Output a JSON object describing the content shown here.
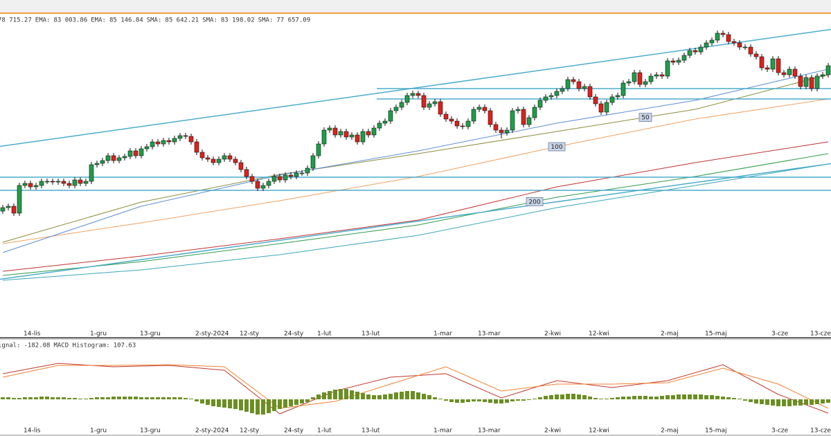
{
  "chart_data": [
    {
      "type": "candlestick",
      "ylim": [
        53200,
        88000
      ],
      "up_color": "#1e9e4a",
      "down_color": "#e0201b",
      "categories": [
        null,
        null,
        null,
        null,
        "14-lis",
        null,
        null,
        null,
        null,
        null,
        null,
        null,
        null,
        null,
        null,
        null,
        "1-gru",
        null,
        null,
        null,
        null,
        null,
        null,
        null,
        null,
        "13-gru",
        null,
        null,
        null,
        null,
        null,
        null,
        null,
        null,
        null,
        "2-sty-2024",
        null,
        null,
        null,
        null,
        null,
        null,
        null,
        "12-sty",
        null,
        null,
        null,
        null,
        null,
        null,
        null,
        "24-sty",
        null,
        null,
        null,
        null,
        null,
        "1-lut",
        null,
        null,
        null,
        null,
        null,
        null,
        null,
        "13-lut",
        null,
        null,
        null,
        null,
        null,
        null,
        null,
        null,
        null,
        null,
        null,
        null,
        "1-mar",
        null,
        null,
        null,
        null,
        null,
        null,
        null,
        "13-mar",
        null,
        null,
        null,
        null,
        null,
        null,
        null,
        null,
        null,
        null,
        null,
        "2-kwi",
        null,
        null,
        null,
        null,
        null,
        null,
        null,
        "12-kwi",
        null,
        null,
        null,
        null,
        null,
        null,
        null,
        null,
        null,
        null,
        null,
        null,
        "2-maj",
        null,
        null,
        null,
        null,
        null,
        null,
        null,
        "15-maj",
        null,
        null,
        null,
        null,
        null,
        null,
        null,
        null,
        null,
        null,
        null,
        "3-cze",
        null,
        null,
        null,
        null,
        null,
        null,
        "13-cze",
        null,
        null,
        null
      ],
      "open": [
        66775,
        67150,
        67300,
        66550,
        69550,
        69775,
        69400,
        69550,
        70000,
        70000,
        69925,
        70000,
        69775,
        69550,
        70150,
        69775,
        70000,
        71800,
        71950,
        72250,
        72775,
        72250,
        72550,
        72700,
        73300,
        72775,
        73525,
        73750,
        74275,
        74050,
        74425,
        74275,
        74650,
        74950,
        74875,
        74275,
        73150,
        72550,
        72400,
        72025,
        72400,
        72775,
        72400,
        72025,
        71275,
        70525,
        70000,
        69250,
        69550,
        70000,
        70525,
        70150,
        70675,
        70525,
        70900,
        70900,
        71425,
        72775,
        74050,
        75550,
        75775,
        75025,
        75400,
        74800,
        75025,
        74275,
        75400,
        75025,
        75775,
        76300,
        76525,
        77650,
        78025,
        78550,
        79300,
        79525,
        79300,
        78025,
        78400,
        78625,
        77275,
        76750,
        76525,
        76000,
        75925,
        76525,
        77800,
        78025,
        77650,
        76150,
        75550,
        75250,
        75550,
        77650,
        77800,
        76150,
        76900,
        78025,
        78775,
        79150,
        79300,
        79750,
        80050,
        81025,
        80800,
        80050,
        80275,
        79150,
        78400,
        77500,
        78550,
        79150,
        79300,
        80650,
        80800,
        81775,
        80500,
        80800,
        81400,
        81550,
        81400,
        83050,
        82900,
        83125,
        83650,
        84175,
        84025,
        84550,
        85000,
        85300,
        86050,
        85900,
        85150,
        85000,
        84550,
        84550,
        83800,
        83500,
        82300,
        82150,
        83275,
        81775,
        81550,
        82150,
        81400,
        80275,
        81250,
        80050,
        81400,
        81550
      ],
      "high": [
        67450,
        67600,
        67600,
        69850,
        70075,
        70075,
        69850,
        70300,
        70300,
        70300,
        70300,
        70300,
        70075,
        70450,
        70450,
        70300,
        72100,
        72250,
        72550,
        73075,
        73075,
        72850,
        73000,
        73600,
        73600,
        73825,
        74050,
        74575,
        74575,
        74725,
        74725,
        74950,
        75250,
        75250,
        75175,
        74575,
        73450,
        72850,
        72700,
        72700,
        73075,
        73075,
        72700,
        72325,
        71575,
        70825,
        70300,
        69850,
        70300,
        70825,
        70825,
        70975,
        70975,
        71200,
        71200,
        71725,
        73075,
        74350,
        75850,
        76075,
        76075,
        75700,
        75700,
        75325,
        75325,
        75700,
        75700,
        76075,
        76600,
        76825,
        77950,
        78325,
        78850,
        79600,
        79825,
        79825,
        79600,
        78700,
        78925,
        78925,
        77575,
        77050,
        76825,
        76300,
        76825,
        78100,
        78325,
        78325,
        77950,
        76450,
        75850,
        75850,
        77950,
        78100,
        78100,
        77200,
        78325,
        79075,
        79450,
        79600,
        80050,
        80350,
        81325,
        81325,
        81100,
        80575,
        80575,
        79450,
        78700,
        78850,
        79450,
        79600,
        80950,
        81100,
        82075,
        82075,
        81100,
        81700,
        81850,
        81850,
        83350,
        83350,
        83425,
        83950,
        84475,
        84475,
        84850,
        85300,
        85600,
        86350,
        86350,
        86200,
        85450,
        85300,
        84850,
        84850,
        84100,
        83800,
        82600,
        83575,
        83575,
        82075,
        82450,
        82450,
        81700,
        81550,
        81550,
        81700,
        81850,
        82825
      ],
      "low": [
        66475,
        66850,
        66250,
        66250,
        69250,
        69100,
        69100,
        69250,
        69700,
        69625,
        69625,
        69475,
        69250,
        69250,
        69475,
        69475,
        69700,
        71500,
        71650,
        71950,
        71950,
        71950,
        72250,
        72400,
        72475,
        72475,
        73225,
        73450,
        73750,
        73750,
        73975,
        73975,
        74350,
        74575,
        73975,
        72850,
        72250,
        72100,
        71725,
        71725,
        72100,
        72100,
        71725,
        70975,
        70225,
        69700,
        68950,
        68950,
        69250,
        69700,
        69850,
        69850,
        70225,
        70225,
        70600,
        70600,
        71125,
        72475,
        73750,
        75250,
        74725,
        74725,
        74500,
        74500,
        73975,
        73975,
        74725,
        74725,
        75475,
        76000,
        76225,
        77350,
        77725,
        78250,
        79000,
        79000,
        77725,
        77725,
        78100,
        76975,
        76450,
        76225,
        75700,
        75625,
        75625,
        76225,
        77500,
        77350,
        75850,
        75250,
        74650,
        74950,
        75250,
        77350,
        75850,
        75850,
        76600,
        77725,
        78475,
        78850,
        79000,
        79450,
        79750,
        80500,
        79750,
        79750,
        78850,
        78100,
        77200,
        77200,
        78250,
        78850,
        79000,
        80350,
        80500,
        80200,
        80200,
        80500,
        81100,
        81100,
        81100,
        82600,
        82600,
        82825,
        83350,
        83725,
        83725,
        84250,
        84700,
        85000,
        85600,
        84850,
        84700,
        84250,
        84250,
        83500,
        83200,
        82000,
        81850,
        81850,
        81475,
        81250,
        81250,
        81100,
        79975,
        79975,
        79750,
        79750,
        81100,
        81250
      ],
      "close": [
        67150,
        67300,
        66550,
        69550,
        69775,
        69400,
        69550,
        70000,
        70000,
        69925,
        70000,
        69775,
        69550,
        70150,
        69775,
        70000,
        71800,
        71950,
        72250,
        72775,
        72250,
        72550,
        72700,
        73300,
        72775,
        73525,
        73750,
        74275,
        74050,
        74425,
        74275,
        74650,
        74950,
        74875,
        74275,
        73150,
        72550,
        72400,
        72025,
        72400,
        72775,
        72400,
        72025,
        71275,
        70525,
        70000,
        69250,
        69550,
        70000,
        70525,
        70150,
        70675,
        70525,
        70900,
        70900,
        71425,
        72775,
        74050,
        75550,
        75775,
        75025,
        75400,
        74800,
        75025,
        74275,
        75400,
        75025,
        75775,
        76300,
        76525,
        77650,
        78025,
        78550,
        79300,
        79525,
        79300,
        78025,
        78400,
        78625,
        77275,
        76750,
        76525,
        76000,
        75925,
        76525,
        77800,
        78025,
        77650,
        76150,
        75550,
        75250,
        75550,
        77650,
        77800,
        76150,
        76900,
        78025,
        78775,
        79150,
        79300,
        79750,
        80050,
        81025,
        80800,
        80050,
        80275,
        79150,
        78400,
        77500,
        78550,
        79150,
        79300,
        80650,
        80800,
        81775,
        80500,
        80800,
        81400,
        81550,
        81400,
        83050,
        82900,
        83125,
        83650,
        84175,
        84025,
        84550,
        85000,
        85300,
        86050,
        85900,
        85150,
        85000,
        84550,
        84550,
        83800,
        83500,
        82300,
        82150,
        83275,
        81775,
        81550,
        82150,
        81400,
        80275,
        81250,
        80050,
        81400,
        81550,
        82525
      ],
      "indicators": [
        {
          "value": 78715.27,
          "value_label": "78 715.27",
          "color": "#3aa6b9",
          "x": [
            0,
            25,
            50,
            75,
            100,
            125,
            149
          ],
          "values": [
            59275,
            60400,
            62050,
            64150,
            67150,
            69550,
            71875
          ]
        },
        {
          "name": "EMA:",
          "value": 83003.86,
          "value_label": "83 003.86",
          "color": "#f0a060",
          "tag": "100",
          "x": [
            0,
            25,
            50,
            75,
            100,
            125,
            149
          ],
          "values": [
            63250,
            65500,
            67900,
            70525,
            73750,
            76750,
            78925
          ]
        },
        {
          "name": "EMA:",
          "value": 85146.84,
          "value_label": "85 146.84",
          "color": "#8b8b3a",
          "tag": "50",
          "x": [
            0,
            25,
            50,
            75,
            100,
            125,
            149
          ],
          "values": [
            63400,
            67750,
            70750,
            73000,
            75400,
            77800,
            81550
          ]
        },
        {
          "name": "SMA:",
          "value": 85642.21,
          "value_label": "85 642.21",
          "color": "#5b8fd4",
          "x": [
            0,
            25,
            50,
            75,
            100,
            125,
            149
          ],
          "values": [
            62275,
            67300,
            70675,
            73300,
            76300,
            78775,
            82150
          ]
        },
        {
          "name": "SMA:",
          "value": 83198.02,
          "value_label": "83 198.02",
          "color": "#c03030",
          "x": [
            0,
            25,
            50,
            75,
            100,
            125,
            149
          ],
          "values": [
            60250,
            61900,
            63775,
            65800,
            69400,
            72025,
            74275
          ]
        },
        {
          "name": "SMA:",
          "value": 77657.09,
          "value_label": "77 657.09",
          "color": "#2e9a4a",
          "tag": "200",
          "x": [
            0,
            25,
            50,
            75,
            100,
            125,
            149
          ],
          "values": [
            59800,
            61300,
            63250,
            65275,
            68275,
            70525,
            73000
          ]
        }
      ],
      "levels": [
        {
          "value": 80050,
          "x": [
            68,
            149
          ]
        },
        {
          "value": 78925,
          "x": [
            68,
            149
          ]
        },
        {
          "value": 70450,
          "x": [
            0,
            149
          ]
        },
        {
          "value": 69025,
          "x": [
            0,
            149
          ]
        }
      ],
      "level_color": "#4aaccb",
      "trendlines": [
        {
          "x": [
            0,
            149
          ],
          "values": [
            73825,
            86425
          ]
        },
        {
          "x": [
            0,
            149
          ],
          "values": [
            59425,
            71875
          ]
        }
      ]
    },
    {
      "type": "macd",
      "ylim": [
        -1000,
        1700
      ],
      "histogram": {
        "name": "MACD Histogram:",
        "value": 107.63,
        "value_label": "107.63",
        "color": "#6b8e23",
        "values": [
          60,
          60,
          40,
          40,
          60,
          60,
          60,
          80,
          80,
          60,
          60,
          60,
          40,
          40,
          20,
          20,
          40,
          60,
          60,
          60,
          80,
          80,
          80,
          80,
          80,
          60,
          60,
          60,
          60,
          60,
          60,
          60,
          60,
          40,
          20,
          -60,
          -120,
          -160,
          -200,
          -220,
          -240,
          -260,
          -280,
          -320,
          -360,
          -400,
          -440,
          -440,
          -400,
          -340,
          -280,
          -240,
          -200,
          -160,
          -120,
          -80,
          60,
          140,
          200,
          240,
          280,
          300,
          300,
          260,
          220,
          180,
          140,
          120,
          120,
          140,
          160,
          200,
          220,
          240,
          240,
          200,
          160,
          120,
          60,
          20,
          -40,
          -80,
          -100,
          -100,
          -80,
          -60,
          -60,
          -80,
          -100,
          -120,
          -120,
          -100,
          -60,
          -40,
          -40,
          -20,
          20,
          60,
          100,
          120,
          140,
          140,
          160,
          160,
          140,
          120,
          80,
          40,
          20,
          20,
          40,
          60,
          80,
          80,
          100,
          100,
          100,
          80,
          80,
          100,
          120,
          120,
          140,
          140,
          140,
          140,
          140,
          120,
          120,
          100,
          80,
          60,
          40,
          20,
          -40,
          -80,
          -120,
          -140,
          -160,
          -180,
          -200,
          -200,
          -200,
          -180,
          -180,
          -160,
          -160,
          -140,
          -120,
          -100
        ]
      },
      "series": [
        {
          "color": "#c0392b",
          "x": [
            0,
            10,
            20,
            30,
            40,
            50,
            60,
            70,
            80,
            90,
            100,
            110,
            120,
            130,
            140,
            149
          ],
          "values": [
            740,
            1040,
            940,
            980,
            840,
            -420,
            240,
            640,
            740,
            40,
            540,
            340,
            540,
            1000,
            140,
            -400
          ]
        },
        {
          "name": "ignal:",
          "value": -182.08,
          "value_label": "-182.08",
          "color": "#f08030",
          "x": [
            0,
            10,
            20,
            30,
            40,
            50,
            60,
            70,
            80,
            90,
            100,
            110,
            120,
            130,
            140,
            149
          ],
          "values": [
            640,
            980,
            980,
            1000,
            940,
            -260,
            -60,
            440,
            940,
            240,
            440,
            440,
            480,
            900,
            440,
            -260
          ]
        }
      ]
    }
  ]
}
